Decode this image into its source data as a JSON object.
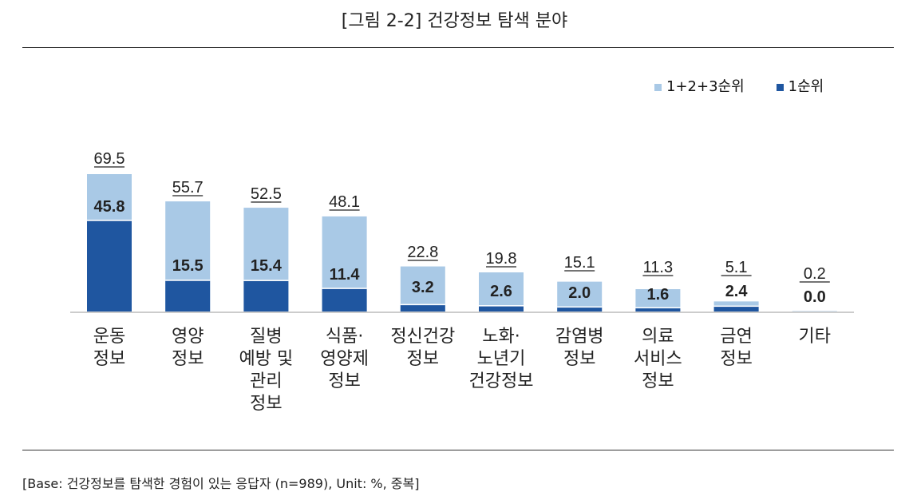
{
  "title": "[그림 2-2] 건강정보 탐색 분야",
  "note": "[Base: 건강정보를 탐색한 경험이 있는 응답자 (n=989), Unit: %, 중복]",
  "chart_data": {
    "type": "bar",
    "title": "[그림 2-2] 건강정보 탐색 분야",
    "categories": [
      [
        "운동",
        "정보"
      ],
      [
        "영양",
        "정보"
      ],
      [
        "질병",
        "예방 및",
        "관리",
        "정보"
      ],
      [
        "식품·",
        "영양제",
        "정보"
      ],
      [
        "정신건강",
        "정보"
      ],
      [
        "노화·",
        "노년기",
        "건강정보"
      ],
      [
        "감염병",
        "정보"
      ],
      [
        "의료",
        "서비스",
        "정보"
      ],
      [
        "금연",
        "정보"
      ],
      [
        "기타"
      ]
    ],
    "series": [
      {
        "name": "1+2+3순위",
        "color": "#a9c9e6",
        "values": [
          69.5,
          55.7,
          52.5,
          48.1,
          22.8,
          19.8,
          15.1,
          11.3,
          5.1,
          0.2
        ]
      },
      {
        "name": "1순위",
        "color": "#1f56a0",
        "values": [
          45.8,
          15.5,
          15.4,
          11.4,
          3.2,
          2.6,
          2.0,
          1.6,
          2.4,
          0.0
        ]
      }
    ],
    "legend": "top-right",
    "grid": false,
    "ylim": [
      0,
      70
    ]
  }
}
